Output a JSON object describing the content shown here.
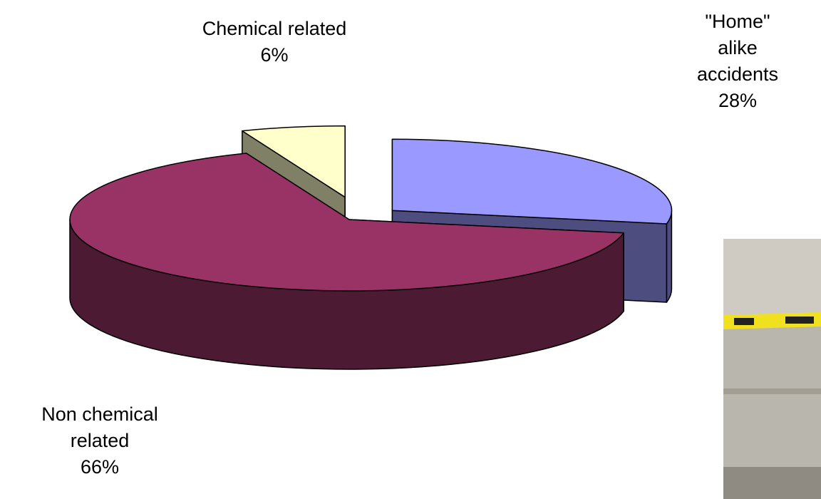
{
  "chart_data": {
    "type": "pie3d",
    "categories": [
      "\"Home\" alike accidents",
      "Non chemical related",
      "Chemical related"
    ],
    "values": [
      28,
      66,
      6
    ],
    "value_labels": [
      "28%",
      "66%",
      "6%"
    ],
    "colors": [
      "#9999ff",
      "#993366",
      "#ffffcc"
    ],
    "side_colors": [
      "#4d4d80",
      "#4d1a33",
      "#808066"
    ],
    "exploded": [
      true,
      false,
      true
    ]
  }
}
